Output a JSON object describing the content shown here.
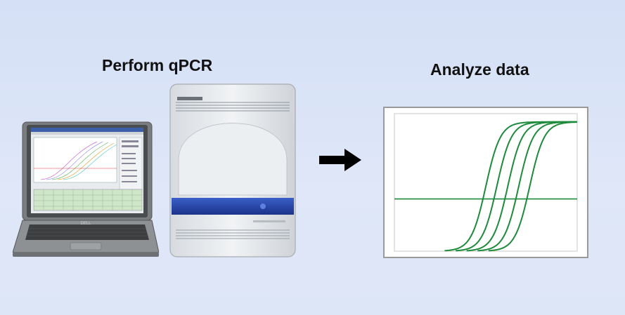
{
  "diagram": {
    "left_title": "Perform qPCR",
    "right_title": "Analyze data",
    "laptop_brand": "DELL",
    "colors": {
      "background": "#d9e3f7",
      "curve": "#1e8a3c",
      "instrument_band": "#2244a8",
      "arrow": "#000000"
    }
  },
  "chart_data": {
    "type": "line",
    "title": "",
    "xlabel": "",
    "ylabel": "",
    "xlim": [
      0,
      100
    ],
    "ylim": [
      0,
      100
    ],
    "threshold": 38,
    "series": [
      {
        "midpoint": 50,
        "slope": 0.25,
        "max": 94
      },
      {
        "midpoint": 56,
        "slope": 0.25,
        "max": 94
      },
      {
        "midpoint": 62,
        "slope": 0.25,
        "max": 94
      },
      {
        "midpoint": 68,
        "slope": 0.25,
        "max": 94
      },
      {
        "midpoint": 74,
        "slope": 0.25,
        "max": 94
      }
    ]
  }
}
